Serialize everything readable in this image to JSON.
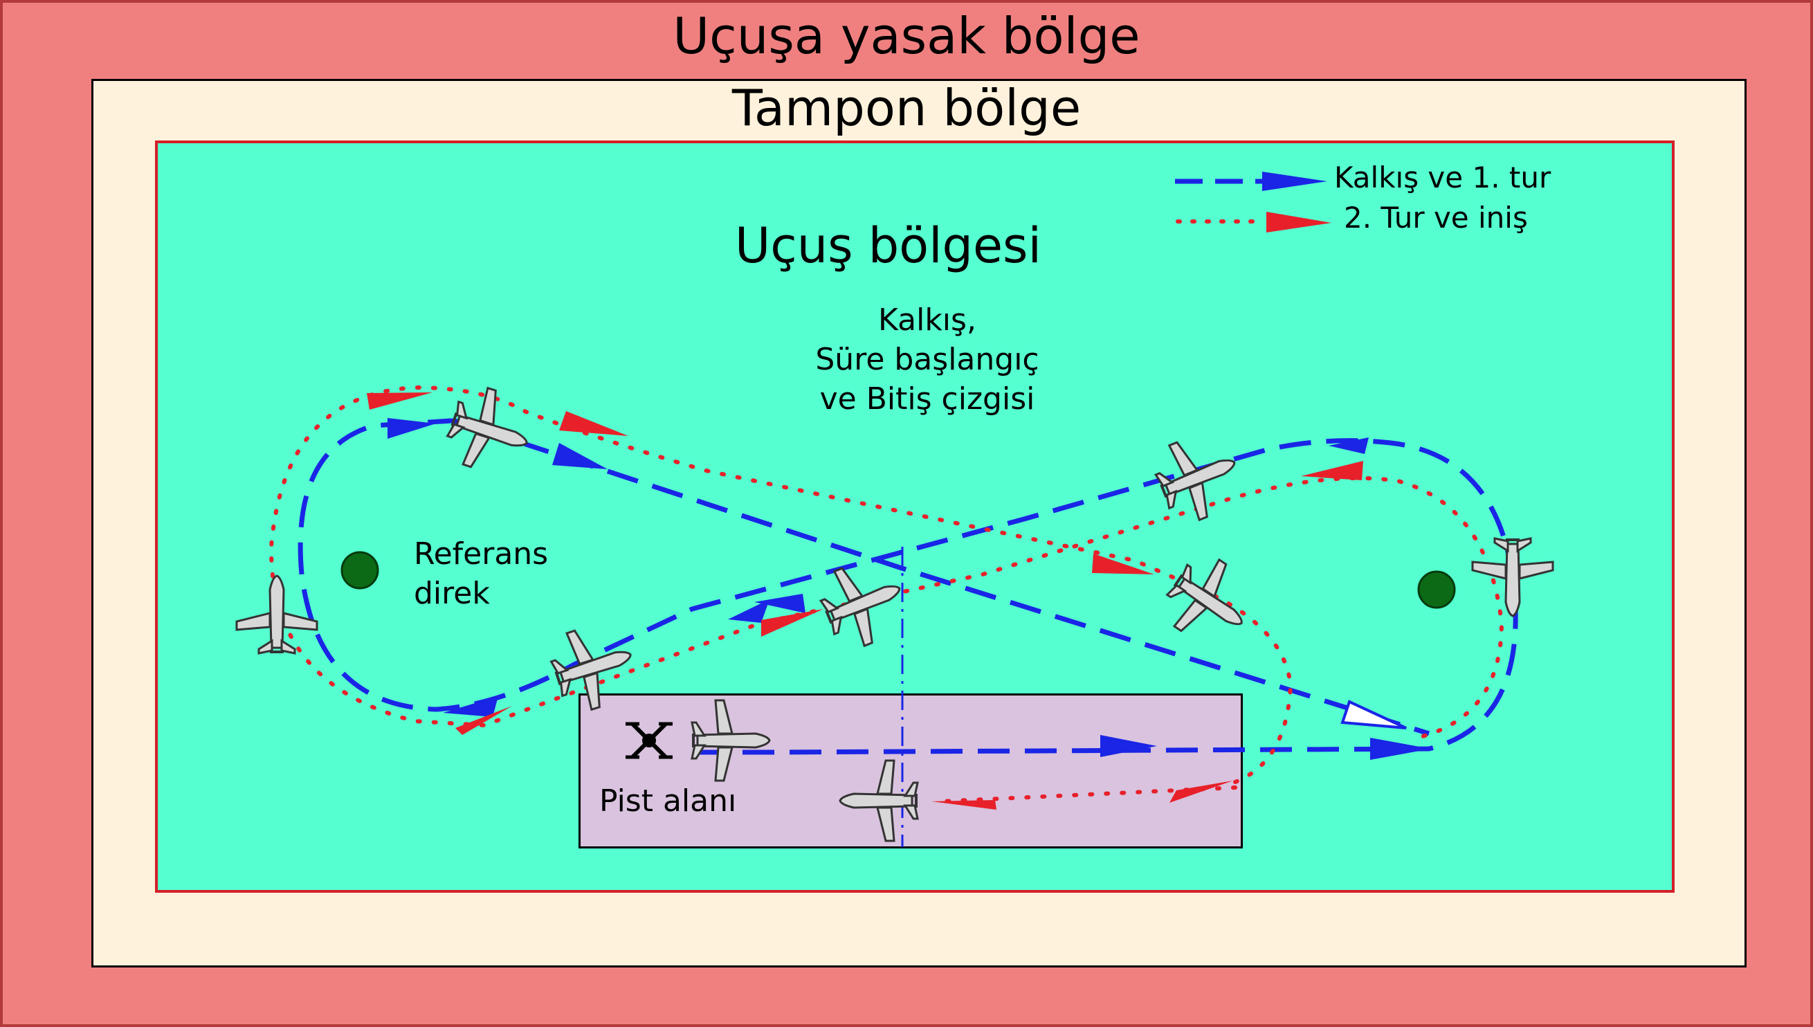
{
  "zones": {
    "no_fly": "Uçuşa yasak bölge",
    "buffer": "Tampon bölge",
    "flight": "Uçuş bölgesi",
    "runway": "Pist alanı"
  },
  "labels": {
    "start_finish": "Kalkış,\nSüre başlangıç\nve Bitiş çizgisi",
    "reference_pole": "Referans\ndirek"
  },
  "legend": [
    {
      "label": "Kalkış ve 1. tur",
      "color": "#1a25e6",
      "style": "dashed"
    },
    {
      "label": "2. Tur ve iniş",
      "color": "#e8202a",
      "style": "dotted"
    }
  ],
  "colors": {
    "no_fly": "#f08080",
    "buffer": "#fff2dc",
    "flight": "#55ffd0",
    "runway": "#d9c3de",
    "pole": "#0c6a17",
    "lap1": "#1a25e6",
    "lap2": "#e8202a"
  },
  "icons": [
    "fixed-wing-uav-icon",
    "quadcopter-icon",
    "reference-pole-icon"
  ]
}
